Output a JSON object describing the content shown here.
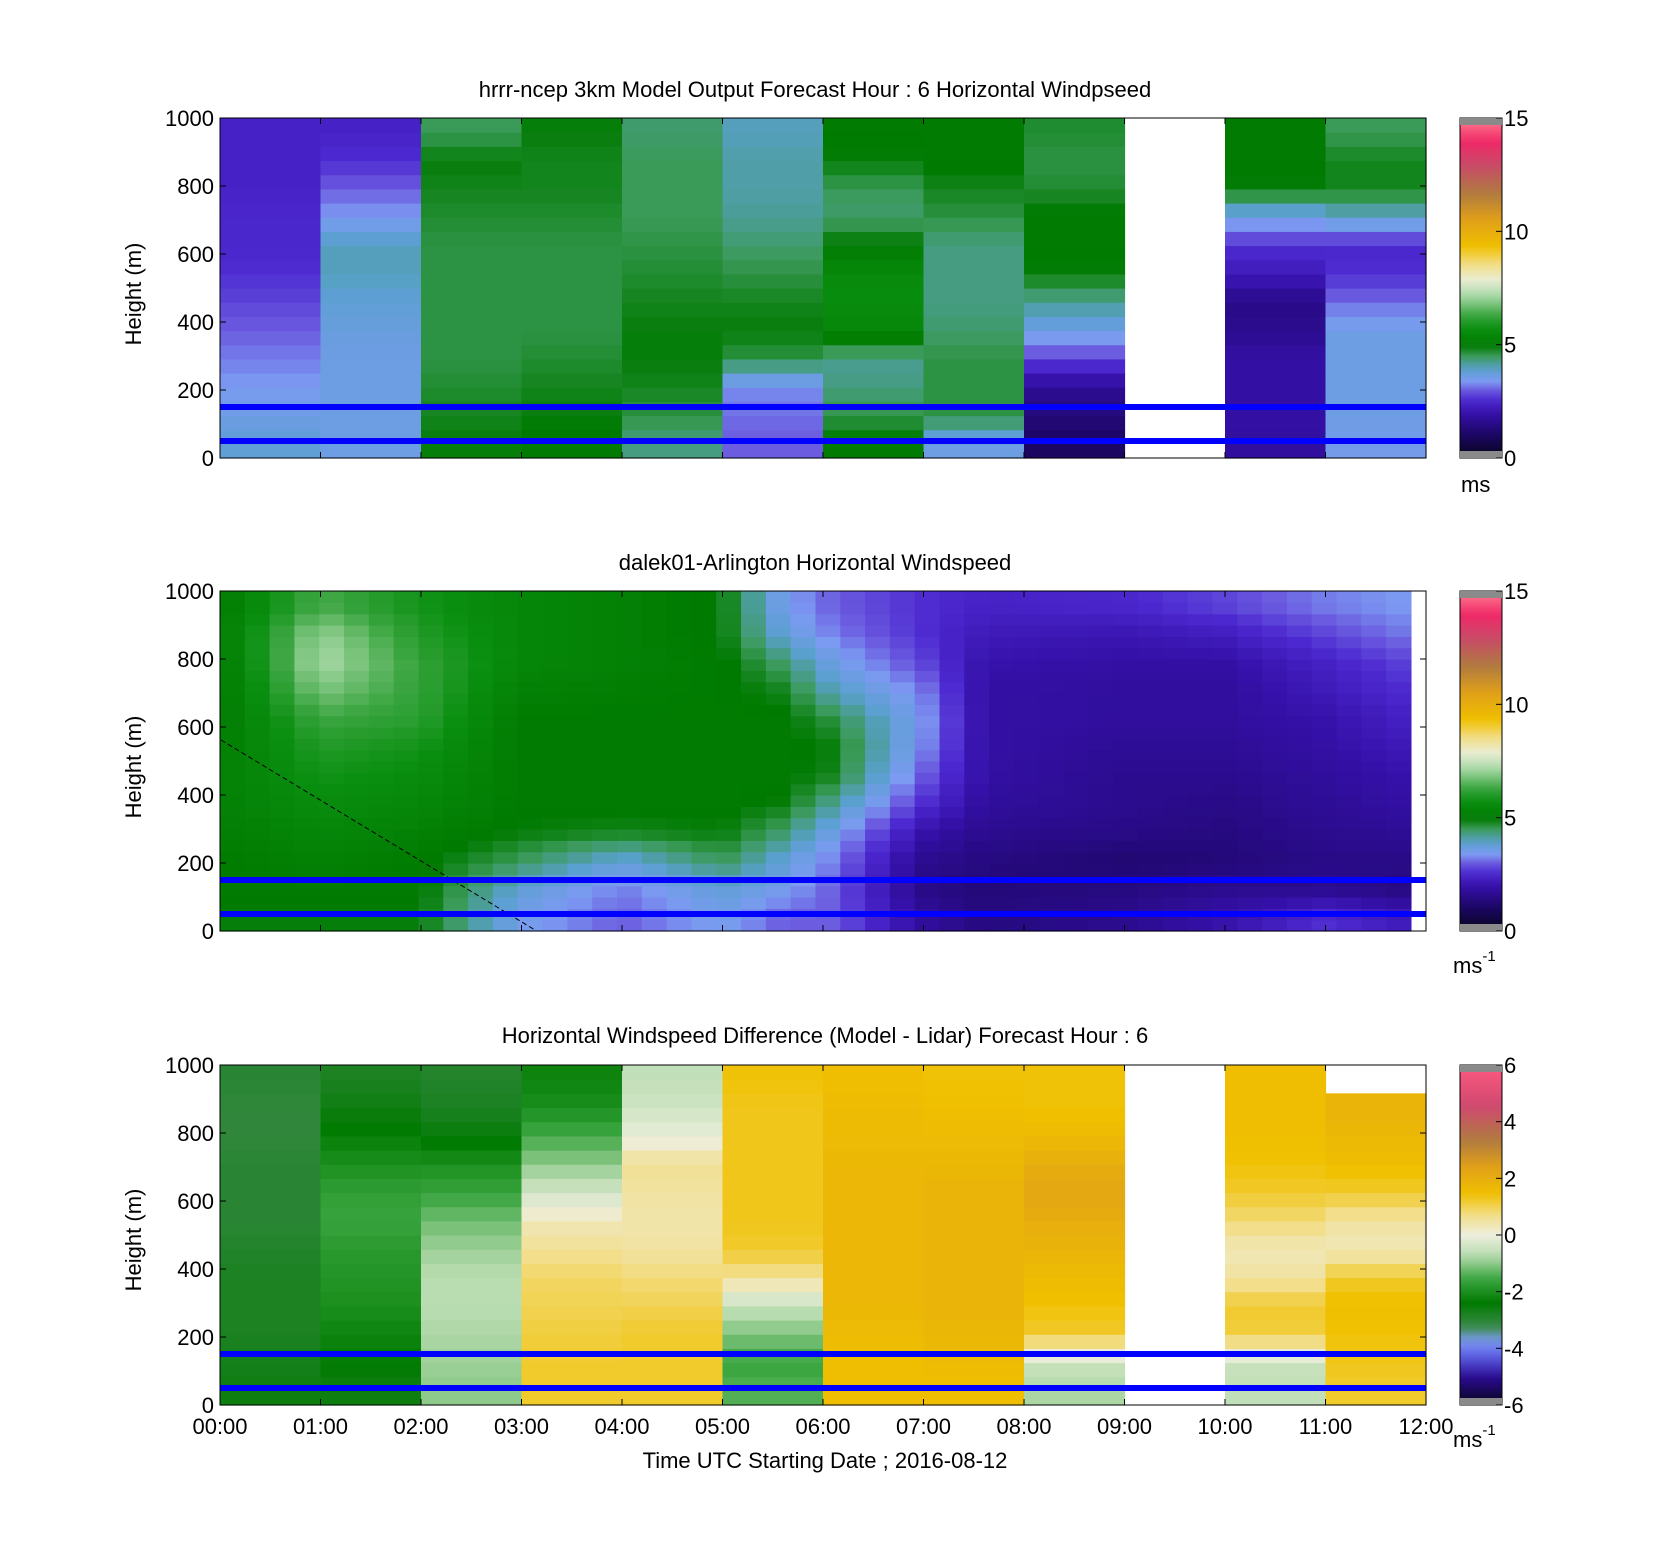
{
  "figure": {
    "xlabel": "Time UTC  Starting Date ; 2016-08-12",
    "x_tick_labels": [
      "00:00",
      "01:00",
      "02:00",
      "03:00",
      "04:00",
      "05:00",
      "06:00",
      "07:00",
      "08:00",
      "09:00",
      "10:00",
      "11:00",
      "12:00"
    ],
    "line_color": "#0000ff"
  },
  "chart_data": [
    {
      "type": "heatmap",
      "title": "hrrr-ncep 3km Model Output   Forecast Hour : 6 Horizontal Windpseed",
      "ylabel": "Height (m)",
      "y_ticks": [
        "0",
        "200",
        "400",
        "600",
        "800",
        "1000"
      ],
      "xlim": [
        0,
        12
      ],
      "ylim": [
        0,
        1000
      ],
      "colorbar": {
        "ticks": [
          "0",
          "5",
          "10",
          "15"
        ],
        "range": [
          0,
          15
        ],
        "unit": "ms",
        "unit_sup": ""
      },
      "reference_lines_m": [
        50,
        150
      ],
      "columns": [
        {
          "hour": 0,
          "values": [
            3.8,
            3.6,
            3.4,
            3.2,
            3.0,
            2.8,
            2.6,
            2.5,
            2.5,
            2.4,
            2.4,
            2.4
          ]
        },
        {
          "hour": 1,
          "values": [
            3.6,
            3.6,
            3.6,
            3.6,
            3.7,
            3.8,
            4.0,
            4.0,
            3.4,
            3.0,
            2.6,
            2.4
          ]
        },
        {
          "hour": 2,
          "values": [
            4.9,
            4.8,
            4.7,
            4.6,
            4.6,
            4.6,
            4.6,
            4.6,
            4.7,
            4.8,
            4.9,
            4.5
          ]
        },
        {
          "hour": 3,
          "values": [
            5.0,
            4.9,
            4.8,
            4.7,
            4.6,
            4.6,
            4.6,
            4.6,
            4.7,
            4.8,
            4.8,
            4.9
          ]
        },
        {
          "hour": 4,
          "values": [
            4.3,
            4.6,
            4.8,
            4.9,
            4.9,
            4.8,
            4.7,
            4.6,
            4.5,
            4.5,
            4.5,
            4.4
          ]
        },
        {
          "hour": 5,
          "values": [
            3.0,
            3.1,
            3.3,
            4.6,
            4.9,
            4.8,
            4.6,
            4.4,
            4.2,
            4.1,
            4.1,
            4.0
          ]
        },
        {
          "hour": 6,
          "values": [
            5.0,
            4.6,
            4.3,
            4.2,
            5.4,
            5.6,
            5.5,
            5.0,
            4.4,
            4.5,
            4.9,
            5.0
          ]
        },
        {
          "hour": 7,
          "values": [
            3.6,
            4.6,
            4.6,
            4.6,
            4.4,
            4.3,
            4.3,
            4.3,
            4.6,
            4.8,
            5.0,
            5.0
          ]
        },
        {
          "hour": 8,
          "values": [
            1.0,
            1.3,
            1.7,
            2.8,
            3.6,
            4.2,
            4.9,
            5.0,
            5.0,
            4.7,
            4.6,
            4.7
          ]
        },
        {
          "hour": 9,
          "values": [
            null,
            null,
            null,
            null,
            null,
            null,
            null,
            null,
            null,
            null,
            null,
            null
          ]
        },
        {
          "hour": 10,
          "values": [
            1.8,
            1.9,
            1.9,
            1.9,
            1.6,
            1.5,
            2.2,
            2.6,
            3.6,
            4.9,
            5.0,
            5.0
          ]
        },
        {
          "hour": 11,
          "values": [
            3.5,
            3.6,
            3.6,
            3.6,
            3.6,
            3.1,
            2.6,
            2.5,
            3.9,
            4.8,
            4.8,
            4.5
          ]
        }
      ]
    },
    {
      "type": "heatmap",
      "title": "dalek01-Arlington  Horizontal Windspeed",
      "ylabel": "Height (m)",
      "y_ticks": [
        "0",
        "200",
        "400",
        "600",
        "800",
        "1000"
      ],
      "xlim": [
        0,
        12
      ],
      "ylim": [
        0,
        1000
      ],
      "colorbar": {
        "ticks": [
          "0",
          "5",
          "10",
          "15"
        ],
        "range": [
          0,
          15
        ],
        "unit": "ms",
        "unit_sup": "-1"
      },
      "reference_lines_m": [
        50,
        150
      ],
      "profiles_hourly": [
        {
          "hour": 0.0,
          "values": [
            4.9,
            5.0,
            5.0,
            5.1,
            5.2,
            5.2,
            5.1,
            5.0,
            5.0,
            5.0,
            5.1,
            5.0
          ]
        },
        {
          "hour": 1.0,
          "values": [
            4.9,
            5.0,
            5.2,
            5.4,
            5.6,
            5.8,
            6.0,
            6.3,
            6.8,
            7.2,
            7.0,
            6.4
          ]
        },
        {
          "hour": 2.0,
          "values": [
            4.9,
            5.0,
            5.0,
            5.2,
            5.4,
            5.6,
            5.8,
            6.1,
            6.2,
            6.2,
            6.0,
            5.8
          ]
        },
        {
          "hour": 3.0,
          "values": [
            3.5,
            3.8,
            4.5,
            4.9,
            5.0,
            5.0,
            5.0,
            5.0,
            5.2,
            5.4,
            5.4,
            5.4
          ]
        },
        {
          "hour": 4.0,
          "values": [
            3.0,
            3.2,
            3.8,
            4.8,
            5.0,
            5.0,
            5.0,
            5.0,
            5.1,
            5.2,
            5.2,
            5.2
          ]
        },
        {
          "hour": 5.0,
          "values": [
            3.5,
            3.8,
            4.5,
            4.9,
            5.0,
            5.0,
            5.0,
            5.0,
            5.0,
            5.0,
            4.9,
            4.9
          ]
        },
        {
          "hour": 5.6,
          "values": [
            3.0,
            3.5,
            3.8,
            4.4,
            4.9,
            5.0,
            5.0,
            5.0,
            4.8,
            4.4,
            3.8,
            3.5
          ]
        },
        {
          "hour": 6.1,
          "values": [
            3.0,
            3.0,
            3.2,
            3.6,
            4.2,
            4.8,
            4.9,
            4.6,
            4.0,
            3.6,
            3.2,
            3.0
          ]
        },
        {
          "hour": 7.0,
          "values": [
            1.8,
            1.5,
            1.6,
            2.0,
            2.6,
            3.0,
            3.3,
            3.4,
            3.2,
            2.8,
            2.6,
            2.6
          ]
        },
        {
          "hour": 7.6,
          "values": [
            1.4,
            1.3,
            1.4,
            1.6,
            1.8,
            1.9,
            1.9,
            1.9,
            1.9,
            2.0,
            2.2,
            2.4
          ]
        },
        {
          "hour": 9.0,
          "values": [
            1.6,
            1.4,
            1.2,
            1.5,
            1.6,
            1.6,
            1.7,
            1.8,
            1.8,
            1.9,
            2.1,
            2.5
          ]
        },
        {
          "hour": 10.0,
          "values": [
            2.0,
            1.6,
            1.3,
            1.4,
            1.5,
            1.6,
            1.7,
            1.8,
            1.8,
            1.9,
            2.3,
            2.8
          ]
        },
        {
          "hour": 11.0,
          "values": [
            2.6,
            1.6,
            1.5,
            1.6,
            1.7,
            1.8,
            1.9,
            2.0,
            2.2,
            2.4,
            2.8,
            3.2
          ]
        },
        {
          "hour": 11.85,
          "values": [
            2.2,
            1.4,
            1.5,
            1.7,
            1.9,
            2.0,
            2.2,
            2.4,
            2.6,
            2.8,
            3.2,
            3.4
          ]
        }
      ]
    },
    {
      "type": "heatmap",
      "title": "Horizontal Windspeed Difference (Model - Lidar) Forecast Hour : 6",
      "ylabel": "Height (m)",
      "y_ticks": [
        "0",
        "200",
        "400",
        "600",
        "800",
        "1000"
      ],
      "xlim": [
        0,
        12
      ],
      "ylim": [
        0,
        1000
      ],
      "colorbar": {
        "ticks": [
          "-6",
          "-4",
          "-2",
          "0",
          "2",
          "4",
          "6"
        ],
        "range": [
          -6,
          6
        ],
        "unit": "ms",
        "unit_sup": "-1"
      },
      "reference_lines_m": [
        50,
        150
      ],
      "columns": [
        {
          "hour": 0,
          "values": [
            -2.6,
            -2.7,
            -2.8,
            -2.8,
            -2.8,
            -2.9,
            -3.0,
            -3.0,
            -3.0,
            -3.1,
            -3.1,
            -3.0
          ]
        },
        {
          "hour": 1,
          "values": [
            -2.6,
            -2.4,
            -2.2,
            -2.0,
            -1.9,
            -1.8,
            -1.6,
            -1.7,
            -2.0,
            -2.3,
            -2.6,
            -2.8
          ]
        },
        {
          "hour": 2,
          "values": [
            -1.0,
            -0.9,
            -0.8,
            -0.7,
            -0.7,
            -0.9,
            -1.2,
            -1.6,
            -2.0,
            -2.5,
            -2.8,
            -2.9
          ]
        },
        {
          "hour": 3,
          "values": [
            1.2,
            1.2,
            1.1,
            1.0,
            0.9,
            0.6,
            0.3,
            -0.4,
            -1.0,
            -1.5,
            -2.0,
            -2.2
          ]
        },
        {
          "hour": 4,
          "values": [
            1.2,
            1.2,
            1.2,
            1.0,
            0.8,
            0.5,
            0.4,
            0.5,
            0.6,
            -0.1,
            -0.4,
            -0.6
          ]
        },
        {
          "hour": 5,
          "values": [
            -1.4,
            -1.6,
            -1.1,
            -0.6,
            0.6,
            1.2,
            1.3,
            1.3,
            1.3,
            1.3,
            1.3,
            1.4
          ]
        },
        {
          "hour": 6,
          "values": [
            1.5,
            1.5,
            1.6,
            1.7,
            1.7,
            1.7,
            1.7,
            1.7,
            1.7,
            1.6,
            1.6,
            1.5
          ]
        },
        {
          "hour": 7,
          "values": [
            1.5,
            1.6,
            1.7,
            1.8,
            1.8,
            1.8,
            1.8,
            1.8,
            1.7,
            1.6,
            1.5,
            1.4
          ]
        },
        {
          "hour": 8,
          "values": [
            -0.8,
            -0.5,
            1.2,
            1.4,
            1.6,
            1.8,
            2.0,
            2.2,
            2.0,
            1.6,
            1.4,
            1.4
          ]
        },
        {
          "hour": 9,
          "values": [
            null,
            null,
            null,
            null,
            null,
            null,
            null,
            null,
            null,
            null,
            null,
            null
          ]
        },
        {
          "hour": 10,
          "values": [
            -0.6,
            -0.5,
            1.1,
            1.2,
            0.5,
            0.3,
            0.8,
            1.2,
            1.4,
            1.5,
            1.5,
            1.5
          ]
        },
        {
          "hour": 11,
          "values": [
            1.2,
            1.3,
            1.4,
            1.5,
            1.2,
            0.3,
            0.5,
            1.2,
            1.5,
            1.7,
            1.8,
            null
          ]
        }
      ]
    }
  ]
}
